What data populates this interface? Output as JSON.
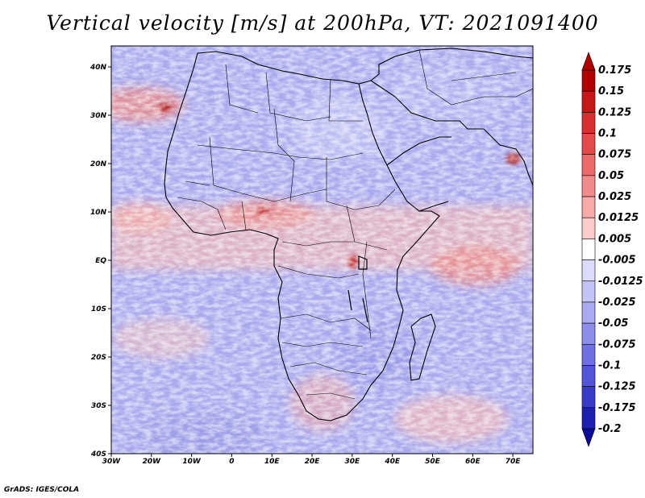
{
  "title": "Vertical velocity [m/s] at 200hPa, VT: 2021091400",
  "credit": "GrADS: IGES/COLA",
  "map": {
    "lon_range": [
      -30,
      75
    ],
    "lat_range": [
      -40,
      45
    ],
    "lat_ticks": [
      "40N",
      "30N",
      "20N",
      "10N",
      "EQ",
      "10S",
      "20S",
      "30S",
      "40S"
    ],
    "lon_ticks": [
      "30W",
      "20W",
      "10W",
      "0",
      "10E",
      "20E",
      "30E",
      "40E",
      "50E",
      "60E",
      "70E"
    ],
    "region": "Africa and western Indian Ocean"
  },
  "colorbar": {
    "labels": [
      "0.175",
      "0.15",
      "0.125",
      "0.1",
      "0.075",
      "0.05",
      "0.025",
      "0.0125",
      "0.005",
      "-0.005",
      "-0.0125",
      "-0.025",
      "-0.05",
      "-0.075",
      "-0.1",
      "-0.125",
      "-0.175",
      "-0.2"
    ],
    "colors": [
      "#b00000",
      "#c41818",
      "#d83030",
      "#e44a4a",
      "#ec6a6a",
      "#f28c8c",
      "#f6aaaa",
      "#fbcccc",
      "#ffffff",
      "#dcdcfa",
      "#c4c4f6",
      "#aaaaf0",
      "#8e8eea",
      "#7070e2",
      "#5454d8",
      "#3a3ac8",
      "#1e1eb0",
      "#0a0a96"
    ]
  }
}
